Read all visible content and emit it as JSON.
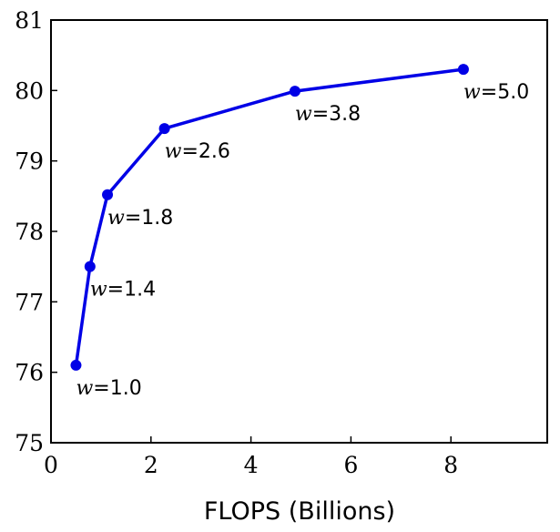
{
  "chart_data": {
    "type": "line",
    "title": "",
    "xlabel": "FLOPS (Billions)",
    "ylabel": "",
    "xlim": [
      0,
      10
    ],
    "ylim": [
      75,
      81
    ],
    "xticks": [
      "0",
      "2",
      "4",
      "6",
      "8"
    ],
    "yticks": [
      "75",
      "76",
      "77",
      "78",
      "79",
      "80",
      "81"
    ],
    "grid": false,
    "legend": "none",
    "series": [
      {
        "color": "#0000e6",
        "x": [
          0.5,
          0.78,
          1.13,
          2.27,
          4.88,
          8.25
        ],
        "y": [
          76.1,
          77.5,
          78.52,
          79.46,
          79.99,
          80.3
        ],
        "point_labels": [
          {
            "var": "w",
            "text": "=1.0"
          },
          {
            "var": "w",
            "text": "=1.4"
          },
          {
            "var": "w",
            "text": "=1.8"
          },
          {
            "var": "w",
            "text": "=2.6"
          },
          {
            "var": "w",
            "text": "=3.8"
          },
          {
            "var": "w",
            "text": "=5.0"
          }
        ]
      }
    ]
  }
}
